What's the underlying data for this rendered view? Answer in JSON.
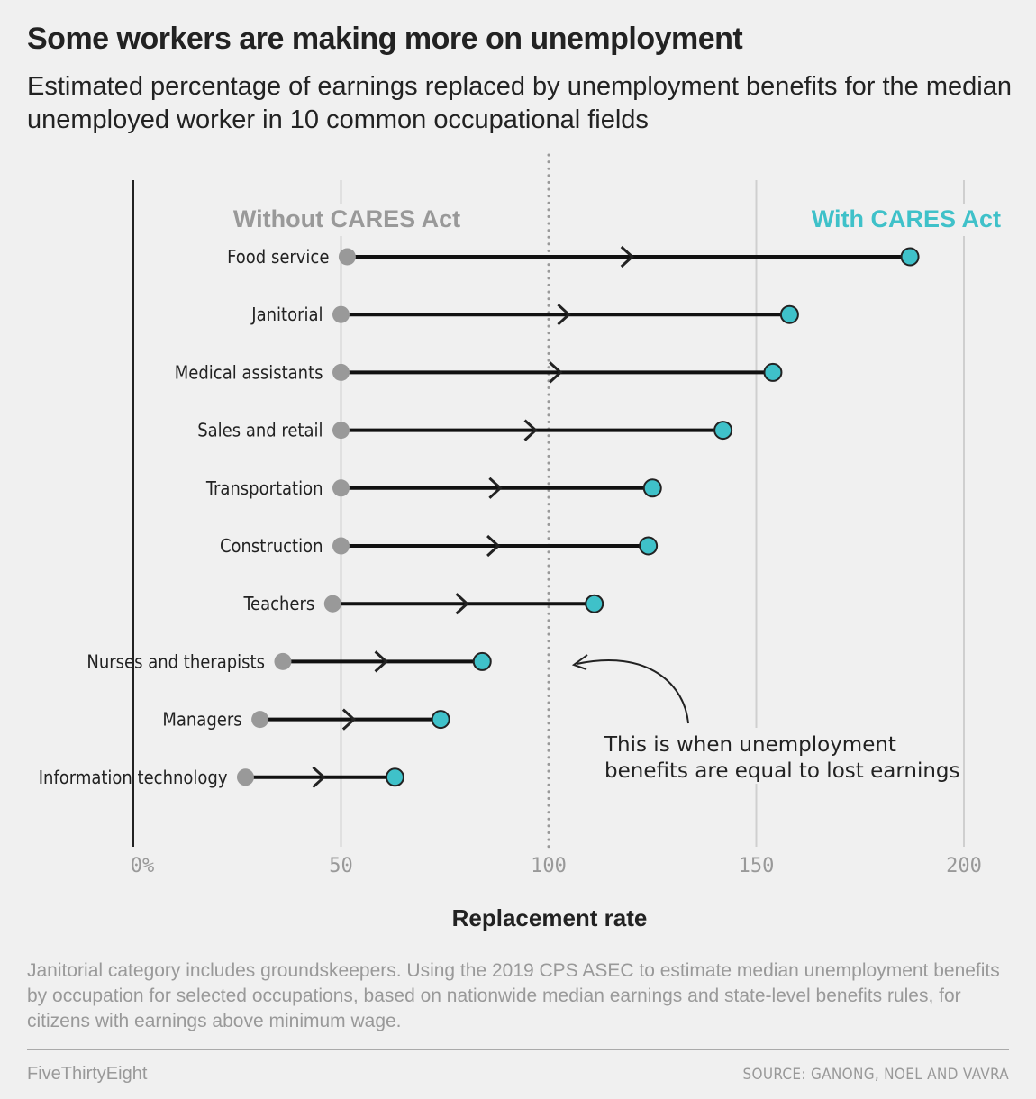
{
  "header": {
    "title": "Some workers are making more on unemployment",
    "subtitle": "Estimated percentage of earnings replaced by unemployment benefits for the median unemployed worker in 10 common occupational fields"
  },
  "chart_data": {
    "type": "dumbbell",
    "title": "Some workers are making more on unemployment",
    "subtitle": "Estimated percentage of earnings replaced by unemployment benefits for the median unemployed worker in 10 common occupational fields",
    "xlabel": "Replacement rate",
    "ylabel": "",
    "xlim": [
      0,
      200
    ],
    "xticks": [
      0,
      50,
      100,
      150,
      200
    ],
    "xtick_labels": [
      "0%",
      "50",
      "100",
      "150",
      "200"
    ],
    "grid": true,
    "reference_line": {
      "value": 100,
      "style": "dotted"
    },
    "legend": {
      "without": {
        "label": "Without CARES Act",
        "color": "#999999"
      },
      "with": {
        "label": "With CARES Act",
        "color": "#3fc1c9"
      }
    },
    "categories": [
      "Food service",
      "Janitorial",
      "Medical assistants",
      "Sales and retail",
      "Transportation",
      "Construction",
      "Teachers",
      "Nurses and therapists",
      "Managers",
      "Information technology"
    ],
    "series": [
      {
        "name": "Without CARES Act",
        "values": [
          51.5,
          50,
          50,
          50,
          50,
          50,
          48,
          36,
          30.5,
          27
        ]
      },
      {
        "name": "With CARES Act",
        "values": [
          187,
          158,
          154,
          142,
          125,
          124,
          111,
          84,
          74,
          63
        ]
      }
    ],
    "annotation": {
      "line1": "This is when unemployment",
      "line2": "benefits are equal to lost earnings"
    }
  },
  "footer": {
    "note": "Janitorial category includes groundskeepers. Using the 2019 CPS ASEC to estimate median unemployment benefits by occupation for selected occupations, based on nationwide median earnings and state-level benefits rules, for citizens with earnings above minimum wage.",
    "brand": "FiveThirtyEight",
    "source": "SOURCE: GANONG, NOEL AND VAVRA"
  }
}
